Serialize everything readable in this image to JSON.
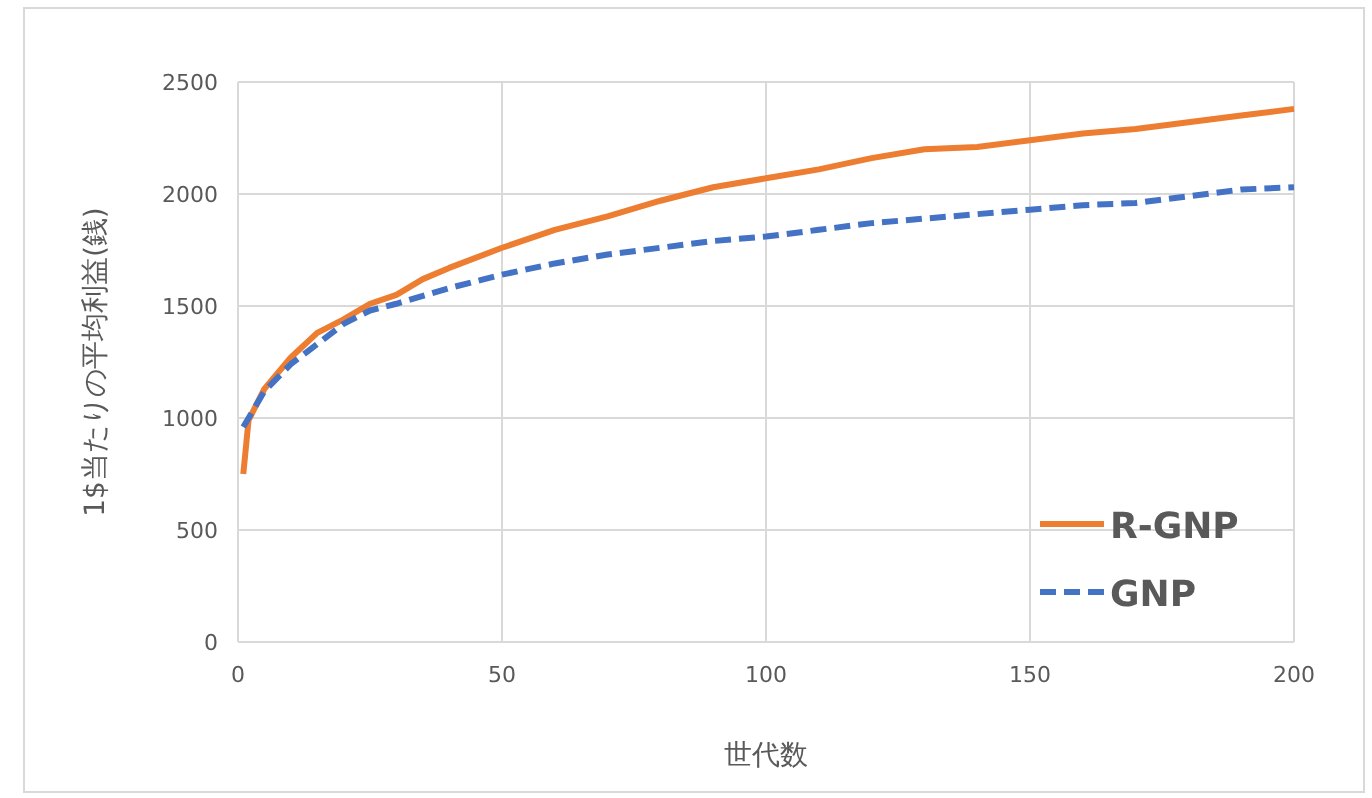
{
  "chart_data": {
    "type": "line",
    "xlabel": "世代数",
    "ylabel": "1$当たりの平均利益(銭)",
    "xlim": [
      0,
      200
    ],
    "xticks": [
      0,
      50,
      100,
      150,
      200
    ],
    "ylim": [
      0,
      2500
    ],
    "yticks": [
      0,
      500,
      1000,
      1500,
      2000,
      2500
    ],
    "grid": true,
    "legend": "bottom right",
    "series": [
      {
        "name": "R-GNP",
        "color": "#ed7d31",
        "line_style": "solid",
        "x": [
          1,
          2,
          5,
          10,
          15,
          20,
          25,
          30,
          35,
          40,
          50,
          60,
          70,
          80,
          90,
          100,
          110,
          120,
          130,
          140,
          150,
          160,
          170,
          180,
          190,
          200
        ],
        "values": [
          750,
          990,
          1130,
          1270,
          1380,
          1440,
          1510,
          1550,
          1620,
          1670,
          1760,
          1840,
          1900,
          1970,
          2030,
          2070,
          2110,
          2160,
          2200,
          2210,
          2240,
          2270,
          2290,
          2320,
          2350,
          2380
        ]
      },
      {
        "name": "GNP",
        "color": "#4472c4",
        "line_style": "dashed",
        "x": [
          1,
          5,
          10,
          15,
          20,
          25,
          30,
          40,
          50,
          60,
          70,
          80,
          90,
          100,
          110,
          120,
          130,
          140,
          150,
          160,
          170,
          180,
          190,
          200
        ],
        "values": [
          960,
          1120,
          1240,
          1330,
          1420,
          1480,
          1510,
          1580,
          1640,
          1690,
          1730,
          1760,
          1790,
          1810,
          1840,
          1870,
          1890,
          1910,
          1930,
          1950,
          1960,
          1990,
          2020,
          2030
        ]
      }
    ]
  }
}
